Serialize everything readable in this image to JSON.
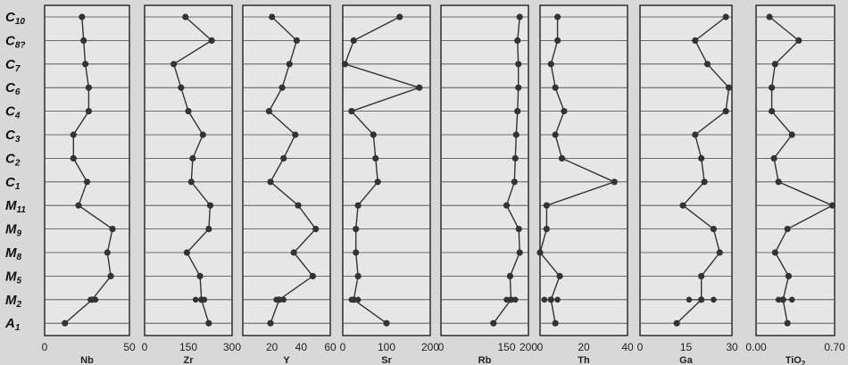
{
  "chart_data": {
    "type": "line",
    "orientation": "vertical-profile",
    "levels": [
      "C10",
      "C8?",
      "C7",
      "C6",
      "C4",
      "C3",
      "C2",
      "C1",
      "M11",
      "M9",
      "M8",
      "M5",
      "M2",
      "A1"
    ],
    "level_labels": [
      {
        "base": "C",
        "sub": "10"
      },
      {
        "base": "C",
        "sub": "8?"
      },
      {
        "base": "C",
        "sub": "7"
      },
      {
        "base": "C",
        "sub": "6"
      },
      {
        "base": "C",
        "sub": "4"
      },
      {
        "base": "C",
        "sub": "3"
      },
      {
        "base": "C",
        "sub": "2"
      },
      {
        "base": "C",
        "sub": "1"
      },
      {
        "base": "M",
        "sub": "11"
      },
      {
        "base": "M",
        "sub": "9"
      },
      {
        "base": "M",
        "sub": "8"
      },
      {
        "base": "M",
        "sub": "5"
      },
      {
        "base": "M",
        "sub": "2"
      },
      {
        "base": "A",
        "sub": "1"
      }
    ],
    "grid": true,
    "panels": [
      {
        "element": "Nb",
        "xlim": [
          0,
          50
        ],
        "tick_labels": [
          "0",
          "50"
        ],
        "tick_values": [
          0,
          50
        ],
        "values": [
          22,
          23,
          24,
          26,
          26,
          17,
          17,
          25,
          20,
          40,
          37,
          39,
          28,
          12
        ],
        "m2_replicates": [
          27,
          30
        ]
      },
      {
        "element": "Zr",
        "xlim": [
          0,
          300
        ],
        "tick_labels": [
          "0",
          "150",
          "300"
        ],
        "tick_values": [
          0,
          150,
          300
        ],
        "values": [
          140,
          230,
          100,
          125,
          150,
          200,
          165,
          160,
          225,
          220,
          145,
          190,
          195,
          220
        ],
        "m2_replicates": [
          175,
          205
        ]
      },
      {
        "element": "Y",
        "xlim": [
          0,
          60
        ],
        "tick_labels": [
          "20",
          "40",
          "60"
        ],
        "tick_values": [
          20,
          40,
          60
        ],
        "values": [
          20,
          37,
          32,
          27,
          18,
          36,
          28,
          19,
          38,
          50,
          35,
          48,
          25,
          19
        ],
        "m2_replicates": [
          23,
          28
        ]
      },
      {
        "element": "Sr",
        "xlim": [
          0,
          200
        ],
        "tick_labels": [
          "0",
          "100",
          "200"
        ],
        "tick_values": [
          0,
          100,
          200
        ],
        "values": [
          130,
          25,
          5,
          175,
          20,
          70,
          75,
          80,
          35,
          30,
          30,
          35,
          25,
          100
        ],
        "m2_replicates": [
          20,
          35
        ]
      },
      {
        "element": "Rb",
        "xlim": [
          0,
          200
        ],
        "tick_labels": [
          "0",
          "150",
          "200"
        ],
        "tick_values": [
          0,
          150,
          200
        ],
        "values": [
          180,
          175,
          177,
          177,
          175,
          172,
          170,
          168,
          150,
          178,
          180,
          158,
          160,
          120
        ],
        "m2_replicates": [
          150,
          170
        ]
      },
      {
        "element": "Th",
        "xlim": [
          0,
          40
        ],
        "tick_labels": [
          "0",
          "20",
          "40"
        ],
        "tick_values": [
          0,
          20,
          40
        ],
        "values": [
          8,
          8,
          5,
          7,
          11,
          7,
          10,
          34,
          3,
          3,
          0,
          9,
          5,
          7
        ],
        "m2_replicates": [
          2,
          8
        ]
      },
      {
        "element": "Ga",
        "xlim": [
          0,
          30
        ],
        "tick_labels": [
          "0",
          "15",
          "30"
        ],
        "tick_values": [
          0,
          15,
          30
        ],
        "values": [
          28,
          18,
          22,
          29,
          28,
          18,
          20,
          21,
          14,
          24,
          26,
          20,
          20,
          12
        ],
        "m2_replicates": [
          16,
          24
        ]
      },
      {
        "element": "TiO2",
        "xlim": [
          0,
          0.7
        ],
        "tick_labels": [
          "0.00",
          "0.70"
        ],
        "tick_values": [
          0,
          0.7
        ],
        "values": [
          0.12,
          0.38,
          0.17,
          0.14,
          0.14,
          0.32,
          0.16,
          0.2,
          0.68,
          0.28,
          0.17,
          0.29,
          0.24,
          0.28
        ],
        "m2_replicates": [
          0.2,
          0.32
        ]
      }
    ]
  }
}
